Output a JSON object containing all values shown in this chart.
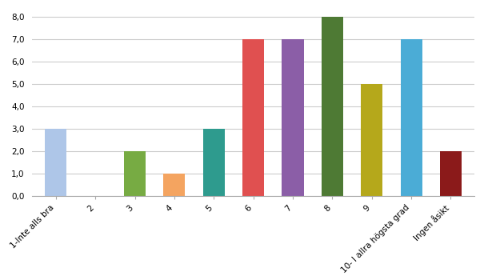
{
  "categories": [
    "1-Inte alls bra",
    "2",
    "3",
    "4",
    "5",
    "6",
    "7",
    "8",
    "9",
    "10- I allra högsta grad",
    "Ingen åsikt"
  ],
  "values": [
    3,
    0,
    2,
    1,
    3,
    7,
    7,
    8,
    5,
    7,
    2
  ],
  "bar_colors": [
    "#aec6e8",
    "#ffffff",
    "#77ab43",
    "#f4a460",
    "#2e9b8e",
    "#e05050",
    "#8b5ea7",
    "#4e7a34",
    "#b5a81b",
    "#4bacd6",
    "#8b1a1a"
  ],
  "ylim": [
    0,
    8.5
  ],
  "yticks": [
    0.0,
    1.0,
    2.0,
    3.0,
    4.0,
    5.0,
    6.0,
    7.0,
    8.0
  ],
  "background_color": "#ffffff",
  "grid_color": "#cccccc",
  "tick_label_fontsize": 7.5,
  "bar_width": 0.55,
  "figwidth": 6.0,
  "figheight": 3.5,
  "dpi": 100
}
